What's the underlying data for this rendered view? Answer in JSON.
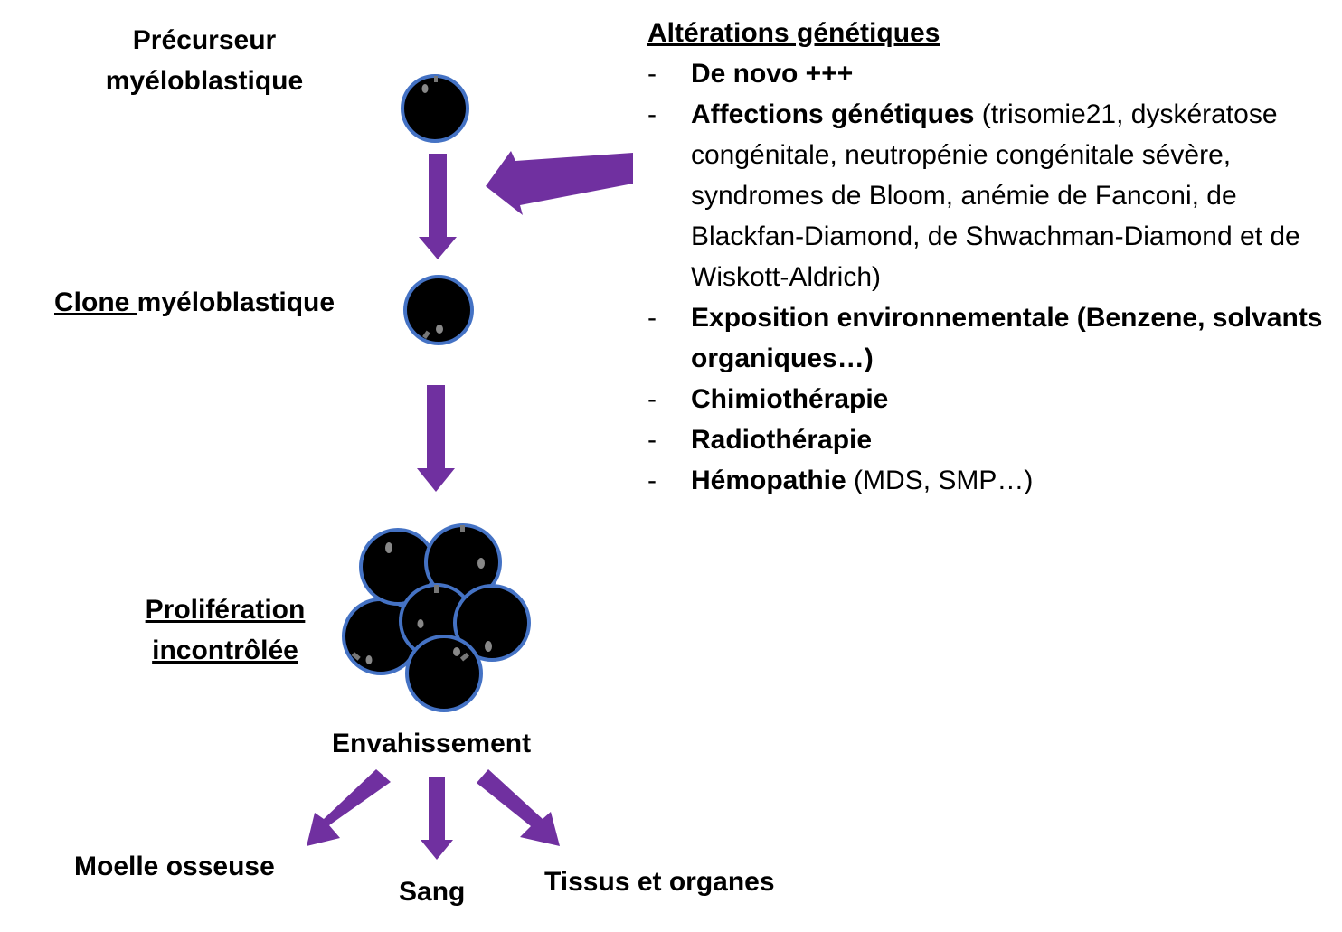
{
  "labels": {
    "precursor_line1": "Précurseur",
    "precursor_line2": "myéloblastique",
    "clone_underlined": "Clone ",
    "clone_rest": "myéloblastique",
    "proliferation_line1": "Prolifération",
    "proliferation_line2": "incontrôlée",
    "invasion": "Envahissement",
    "bone_marrow": "Moelle osseuse",
    "blood": "Sang",
    "tissues": "Tissus et organes"
  },
  "genetics": {
    "title": "Altérations génétiques",
    "dash": "-",
    "items": [
      {
        "bold": "De novo +++",
        "normal": ""
      },
      {
        "bold": "Affections génétiques",
        "normal": " (trisomie21, dyskératose congénitale, neutropénie congénitale sévère, syndromes de Bloom, anémie de Fanconi, de Blackfan-Diamond, de Shwachman-Diamond et de Wiskott-Aldrich)"
      },
      {
        "bold": "Exposition environnementale (Benzene, solvants organiques…)",
        "normal": ""
      },
      {
        "bold": "Chimiothérapie",
        "normal": ""
      },
      {
        "bold": "Radiothérapie",
        "normal": ""
      },
      {
        "bold": "Hémopathie",
        "normal": " (MDS, SMP…)"
      }
    ]
  },
  "colors": {
    "arrow": "#7030a0",
    "cell_fill": "#000000",
    "cell_border": "#4472c4"
  }
}
